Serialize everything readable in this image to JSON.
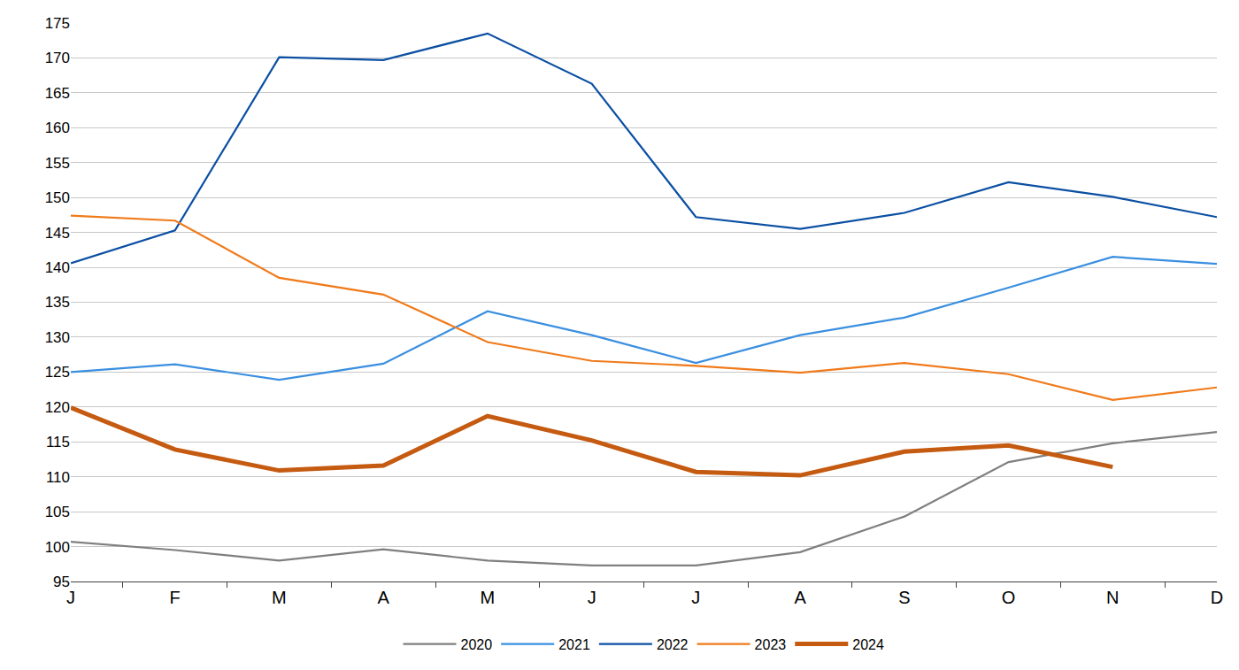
{
  "chart_data": {
    "type": "line",
    "categories": [
      "J",
      "F",
      "M",
      "A",
      "M",
      "J",
      "J",
      "A",
      "S",
      "O",
      "N",
      "D"
    ],
    "series": [
      {
        "name": "2020",
        "color": "#7f7f7f",
        "line_style": "solid",
        "values": [
          100.7,
          99.5,
          98.0,
          99.6,
          98.0,
          97.3,
          97.3,
          99.2,
          104.3,
          112.1,
          114.8,
          116.4
        ]
      },
      {
        "name": "2021",
        "color": "#3a8fe0",
        "line_style": "solid",
        "values": [
          125.0,
          126.1,
          123.9,
          126.2,
          133.7,
          130.3,
          126.3,
          130.3,
          132.8,
          137.1,
          141.5,
          140.5
        ]
      },
      {
        "name": "2022",
        "color": "#0b4fa3",
        "line_style": "solid",
        "values": [
          140.6,
          145.3,
          170.1,
          169.7,
          173.5,
          166.3,
          147.2,
          145.5,
          147.8,
          152.2,
          150.1,
          147.2
        ]
      },
      {
        "name": "2023",
        "color": "#f07a1a",
        "line_style": "solid",
        "values": [
          147.4,
          146.7,
          138.5,
          136.1,
          129.3,
          126.6,
          125.9,
          124.9,
          126.3,
          124.7,
          121.0,
          122.8
        ]
      },
      {
        "name": "2024",
        "color": "#c55a11",
        "line_style": "bold",
        "values": [
          119.9,
          113.9,
          110.9,
          111.6,
          118.7,
          115.2,
          110.7,
          110.2,
          113.6,
          114.5,
          111.4,
          null
        ]
      }
    ],
    "ylim": [
      95,
      175
    ],
    "yticks": [
      95,
      100,
      105,
      110,
      115,
      120,
      125,
      130,
      135,
      140,
      145,
      150,
      155,
      160,
      165,
      170,
      175
    ],
    "grid": true,
    "legend": "bottom"
  }
}
